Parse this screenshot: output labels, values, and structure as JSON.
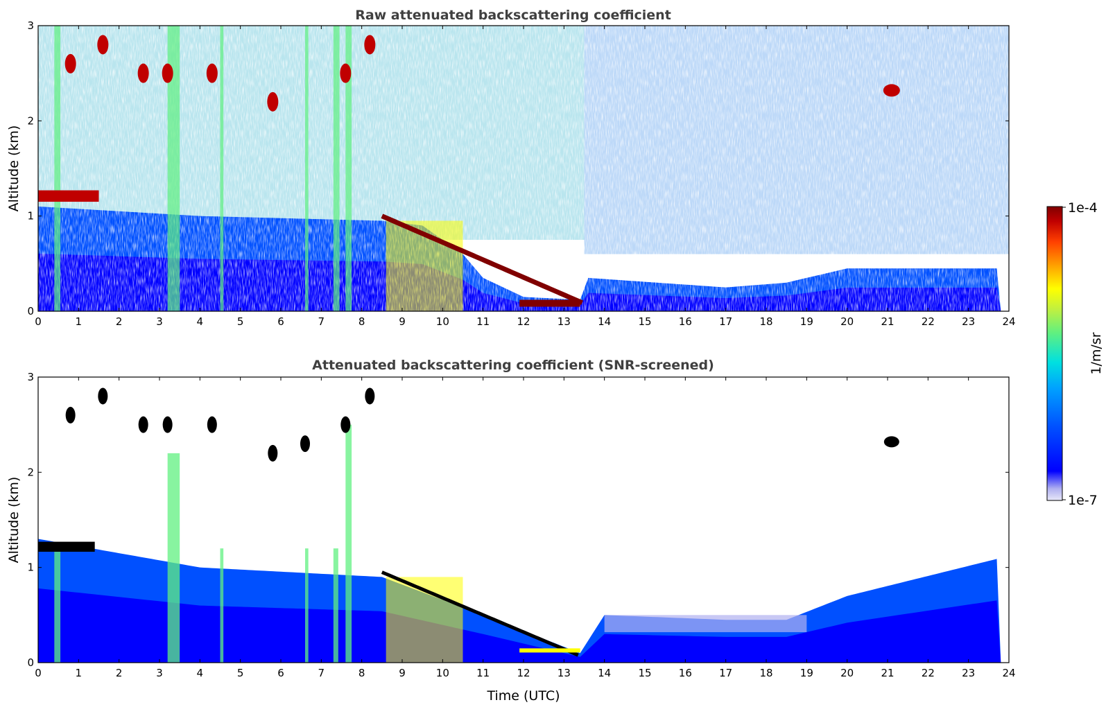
{
  "chart_data": [
    {
      "type": "heatmap",
      "title": "Raw attenuated backscattering coefficient",
      "xlabel": "",
      "ylabel": "Altitude (km)",
      "xlim": [
        0,
        24
      ],
      "ylim": [
        0,
        3
      ],
      "xticks": [
        "0",
        "1",
        "2",
        "3",
        "4",
        "5",
        "6",
        "7",
        "8",
        "9",
        "10",
        "11",
        "12",
        "13",
        "14",
        "15",
        "16",
        "17",
        "18",
        "19",
        "20",
        "21",
        "22",
        "23",
        "24"
      ],
      "yticks": [
        "0",
        "1",
        "2",
        "3"
      ],
      "layers": [
        {
          "feature": "aerosol boundary layer",
          "t_start": 0.0,
          "t_end": 13.5,
          "top_km": [
            1.1,
            1.0,
            0.95,
            0.9,
            0.6,
            0.3,
            0.1
          ]
        },
        {
          "feature": "low cloud layer",
          "t_start": 0.0,
          "t_end": 1.5,
          "altitude_km": 1.2
        },
        {
          "feature": "descending cloud base",
          "t_start": 8.5,
          "t_end": 13.5,
          "altitude_km_start": 1.0,
          "altitude_km_end": 0.08
        },
        {
          "feature": "isolated cloud",
          "t_start": 20.9,
          "t_end": 21.4,
          "altitude_km": 2.3
        }
      ]
    },
    {
      "type": "heatmap",
      "title": "Attenuated backscattering coefficient (SNR-screened)",
      "xlabel": "Time (UTC)",
      "ylabel": "Altitude (km)",
      "xlim": [
        0,
        24
      ],
      "ylim": [
        0,
        3
      ],
      "xticks": [
        "0",
        "1",
        "2",
        "3",
        "4",
        "5",
        "6",
        "7",
        "8",
        "9",
        "10",
        "11",
        "12",
        "13",
        "14",
        "15",
        "16",
        "17",
        "18",
        "19",
        "20",
        "21",
        "22",
        "23",
        "24"
      ],
      "yticks": [
        "0",
        "1",
        "2",
        "3"
      ],
      "layers": [
        {
          "feature": "screened boundary layer top",
          "t": [
            0,
            4,
            8.5,
            11,
            13.4,
            14,
            17,
            18.5,
            20,
            23.8
          ],
          "top_km": [
            1.3,
            1.0,
            0.9,
            0.5,
            0.1,
            0.5,
            0.45,
            0.45,
            0.7,
            1.1
          ]
        }
      ]
    }
  ],
  "colorbar": {
    "label": "1/m/sr",
    "max_label": "1e-4",
    "min_label": "1e-7",
    "scale": "log",
    "range": [
      1e-07,
      0.0001
    ],
    "colormap": [
      "#e8e8f8",
      "#b0b0f0",
      "#0000ff",
      "#0050ff",
      "#00a0ff",
      "#00e0e0",
      "#60f080",
      "#c0f040",
      "#ffff00",
      "#ffa000",
      "#ff4000",
      "#c00000",
      "#800000"
    ]
  }
}
